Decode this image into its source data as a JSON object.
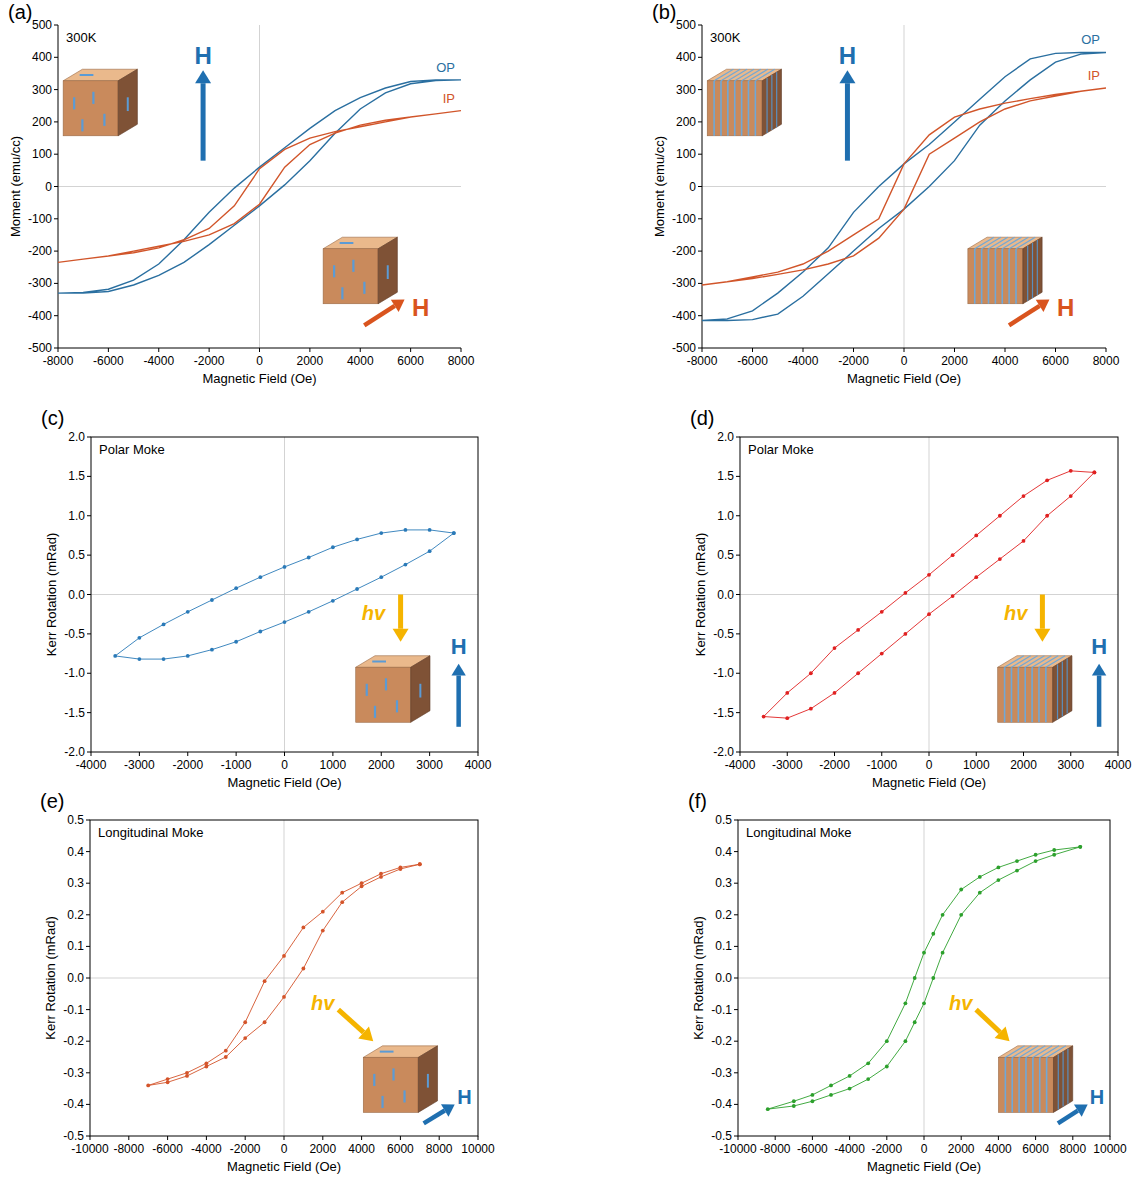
{
  "chart_data": [
    {
      "type": "line",
      "title": "(a)",
      "x_label": "Magnetic Field (Oe)",
      "y_label": "Moment (emu/cc)",
      "xlim": [
        -8000,
        8000
      ],
      "ylim": [
        -500,
        500
      ],
      "xticks": [
        -8000,
        -6000,
        -4000,
        -2000,
        0,
        2000,
        4000,
        6000,
        8000
      ],
      "yticks": [
        -500,
        -400,
        -300,
        -200,
        -100,
        0,
        100,
        200,
        300,
        400,
        500
      ],
      "annotations": [
        {
          "text": "300K"
        },
        {
          "text": "H",
          "color": "#1f6fb0"
        },
        {
          "text": "H",
          "color": "#d9541e"
        }
      ],
      "series": [
        {
          "name": "OP",
          "color": "#2a6fa0",
          "x": [
            8000,
            7000,
            6000,
            5000,
            4000,
            3000,
            2000,
            1000,
            0,
            -1000,
            -2000,
            -3000,
            -4000,
            -5000,
            -6000,
            -7000,
            -8000,
            -7000,
            -6000,
            -5000,
            -4000,
            -3000,
            -2000,
            -1000,
            0,
            1000,
            2000,
            3000,
            4000,
            5000,
            6000,
            7000,
            8000
          ],
          "values": [
            330,
            330,
            325,
            305,
            275,
            235,
            180,
            120,
            60,
            -5,
            -80,
            -165,
            -240,
            -290,
            -318,
            -328,
            -330,
            -330,
            -325,
            -305,
            -275,
            -235,
            -180,
            -120,
            -60,
            5,
            80,
            165,
            240,
            290,
            318,
            328,
            330
          ]
        },
        {
          "name": "IP",
          "color": "#d1552a",
          "x": [
            8000,
            7000,
            6000,
            5000,
            4000,
            3000,
            2000,
            1000,
            0,
            -1000,
            -2000,
            -3000,
            -4000,
            -5000,
            -6000,
            -7000,
            -8000,
            -7000,
            -6000,
            -5000,
            -4000,
            -3000,
            -2000,
            -1000,
            0,
            1000,
            2000,
            3000,
            4000,
            5000,
            6000,
            7000,
            8000
          ],
          "values": [
            235,
            225,
            215,
            200,
            185,
            170,
            150,
            115,
            55,
            -60,
            -130,
            -165,
            -190,
            -205,
            -215,
            -225,
            -235,
            -225,
            -215,
            -200,
            -185,
            -170,
            -150,
            -115,
            -55,
            60,
            130,
            165,
            190,
            205,
            215,
            225,
            235
          ]
        }
      ]
    },
    {
      "type": "line",
      "title": "(b)",
      "x_label": "Magnetic Field (Oe)",
      "y_label": "Moment (emu/cc)",
      "xlim": [
        -8000,
        8000
      ],
      "ylim": [
        -500,
        500
      ],
      "xticks": [
        -8000,
        -6000,
        -4000,
        -2000,
        0,
        2000,
        4000,
        6000,
        8000
      ],
      "yticks": [
        -500,
        -400,
        -300,
        -200,
        -100,
        0,
        100,
        200,
        300,
        400,
        500
      ],
      "annotations": [
        {
          "text": "300K"
        },
        {
          "text": "H",
          "color": "#1f6fb0"
        },
        {
          "text": "H",
          "color": "#d9541e"
        }
      ],
      "series": [
        {
          "name": "OP",
          "color": "#2a6fa0",
          "x": [
            8000,
            7000,
            6000,
            5000,
            4000,
            3000,
            2000,
            1000,
            0,
            -1000,
            -2000,
            -3000,
            -4000,
            -5000,
            -6000,
            -7000,
            -8000,
            -7000,
            -6000,
            -5000,
            -4000,
            -3000,
            -2000,
            -1000,
            0,
            1000,
            2000,
            3000,
            4000,
            5000,
            6000,
            7000,
            8000
          ],
          "values": [
            415,
            415,
            412,
            395,
            340,
            270,
            200,
            130,
            70,
            0,
            -80,
            -190,
            -265,
            -330,
            -385,
            -410,
            -415,
            -415,
            -412,
            -395,
            -340,
            -270,
            -200,
            -130,
            -70,
            0,
            80,
            190,
            265,
            330,
            385,
            410,
            415
          ]
        },
        {
          "name": "IP",
          "color": "#d1552a",
          "x": [
            8000,
            7000,
            6000,
            5000,
            4000,
            3000,
            2000,
            1000,
            0,
            -1000,
            -2000,
            -3000,
            -4000,
            -5000,
            -6000,
            -7000,
            -8000,
            -7000,
            -6000,
            -5000,
            -4000,
            -3000,
            -2000,
            -1000,
            0,
            1000,
            2000,
            3000,
            4000,
            5000,
            6000,
            7000,
            8000
          ],
          "values": [
            305,
            295,
            285,
            272,
            258,
            240,
            215,
            160,
            70,
            -100,
            -150,
            -200,
            -240,
            -265,
            -280,
            -295,
            -305,
            -295,
            -285,
            -272,
            -258,
            -240,
            -215,
            -160,
            -70,
            100,
            150,
            200,
            240,
            265,
            280,
            295,
            305
          ]
        }
      ]
    },
    {
      "type": "line",
      "title": "(c)",
      "x_label": "Magnetic Field (Oe)",
      "y_label": "Kerr Rotation (mRad)",
      "xlim": [
        -4000,
        4000
      ],
      "ylim": [
        -2,
        2
      ],
      "xticks": [
        -4000,
        -3000,
        -2000,
        -1000,
        0,
        1000,
        2000,
        3000,
        4000
      ],
      "yticks": [
        {
          "value": -2,
          "label": "-2.0"
        },
        -1.5,
        {
          "value": -1,
          "label": "-1.0"
        },
        -0.5,
        {
          "value": 0,
          "label": "0.0"
        },
        0.5,
        {
          "value": 1,
          "label": "1.0"
        },
        1.5,
        {
          "value": 2,
          "label": "2.0"
        }
      ],
      "annotations": [
        {
          "text": "Polar Moke"
        },
        {
          "text": "hv",
          "color": "#f5b400"
        },
        {
          "text": "H",
          "color": "#1f6fb0"
        }
      ],
      "series": [
        {
          "color": "#2a7ab8",
          "marker": "circle",
          "line_style": "solid",
          "x": [
            3500,
            3000,
            2500,
            2000,
            1500,
            1000,
            500,
            0,
            -500,
            -1000,
            -1500,
            -2000,
            -2500,
            -3000,
            -3500,
            -3000,
            -2500,
            -2000,
            -1500,
            -1000,
            -500,
            0,
            500,
            1000,
            1500,
            2000,
            2500,
            3000,
            3500
          ],
          "values": [
            0.78,
            0.82,
            0.82,
            0.78,
            0.7,
            0.6,
            0.47,
            0.35,
            0.22,
            0.08,
            -0.07,
            -0.22,
            -0.38,
            -0.55,
            -0.78,
            -0.82,
            -0.82,
            -0.78,
            -0.7,
            -0.6,
            -0.47,
            -0.35,
            -0.22,
            -0.08,
            0.07,
            0.22,
            0.38,
            0.55,
            0.78
          ]
        }
      ]
    },
    {
      "type": "line",
      "title": "(d)",
      "x_label": "Magnetic Field (Oe)",
      "y_label": "Kerr Rotation (mRad)",
      "xlim": [
        -4000,
        4000
      ],
      "ylim": [
        -2,
        2
      ],
      "xticks": [
        -4000,
        -3000,
        -2000,
        -1000,
        0,
        1000,
        2000,
        3000,
        4000
      ],
      "yticks": [
        {
          "value": -2,
          "label": "-2.0"
        },
        -1.5,
        {
          "value": -1,
          "label": "-1.0"
        },
        -0.5,
        {
          "value": 0,
          "label": "0.0"
        },
        0.5,
        {
          "value": 1,
          "label": "1.0"
        },
        1.5,
        {
          "value": 2,
          "label": "2.0"
        }
      ],
      "annotations": [
        {
          "text": "Polar Moke"
        },
        {
          "text": "hv",
          "color": "#f5b400"
        },
        {
          "text": "H",
          "color": "#1f6fb0"
        }
      ],
      "series": [
        {
          "color": "#e02020",
          "marker": "circle",
          "line_style": "solid",
          "x": [
            3500,
            3000,
            2500,
            2000,
            1500,
            1000,
            500,
            0,
            -500,
            -1000,
            -1500,
            -2000,
            -2500,
            -3000,
            -3500,
            -3000,
            -2500,
            -2000,
            -1500,
            -1000,
            -500,
            0,
            500,
            1000,
            1500,
            2000,
            2500,
            3000,
            3500
          ],
          "values": [
            1.55,
            1.57,
            1.45,
            1.25,
            1.0,
            0.75,
            0.5,
            0.25,
            0.02,
            -0.22,
            -0.45,
            -0.68,
            -1.0,
            -1.25,
            -1.55,
            -1.57,
            -1.45,
            -1.25,
            -1.0,
            -0.75,
            -0.5,
            -0.25,
            -0.02,
            0.22,
            0.45,
            0.68,
            1.0,
            1.25,
            1.55
          ]
        }
      ]
    },
    {
      "type": "line",
      "title": "(e)",
      "x_label": "Magnetic Field (Oe)",
      "y_label": "Kerr Rotation (mRad)",
      "xlim": [
        -10000,
        10000
      ],
      "ylim": [
        -0.5,
        0.5
      ],
      "xticks": [
        -10000,
        -8000,
        -6000,
        -4000,
        -2000,
        0,
        2000,
        4000,
        6000,
        8000,
        10000
      ],
      "yticks": [
        -0.5,
        -0.4,
        -0.3,
        -0.2,
        -0.1,
        {
          "value": 0,
          "label": "0.0"
        },
        0.1,
        0.2,
        0.3,
        0.4,
        0.5
      ],
      "annotations": [
        {
          "text": "Longitudinal Moke"
        },
        {
          "text": "hv",
          "color": "#f5b400"
        },
        {
          "text": "H",
          "color": "#1f6fb0"
        }
      ],
      "series": [
        {
          "color": "#d4542a",
          "marker": "circle",
          "line_style": "solid",
          "x": [
            7000,
            6000,
            5000,
            4000,
            3000,
            2000,
            1000,
            0,
            -1000,
            -2000,
            -3000,
            -4000,
            -5000,
            -6000,
            -7000,
            -6000,
            -5000,
            -4000,
            -3000,
            -2000,
            -1000,
            0,
            1000,
            2000,
            3000,
            4000,
            5000,
            6000,
            7000
          ],
          "values": [
            0.36,
            0.35,
            0.33,
            0.3,
            0.27,
            0.21,
            0.16,
            0.07,
            -0.01,
            -0.14,
            -0.23,
            -0.27,
            -0.3,
            -0.32,
            -0.34,
            -0.33,
            -0.31,
            -0.28,
            -0.25,
            -0.19,
            -0.14,
            -0.06,
            0.03,
            0.15,
            0.24,
            0.29,
            0.32,
            0.345,
            0.36
          ]
        }
      ]
    },
    {
      "type": "line",
      "title": "(f)",
      "x_label": "Magnetic Field (Oe)",
      "y_label": "Kerr Rotation (mRad)",
      "xlim": [
        -10000,
        10000
      ],
      "ylim": [
        -0.5,
        0.5
      ],
      "xticks": [
        -10000,
        -8000,
        -6000,
        -4000,
        -2000,
        0,
        2000,
        4000,
        6000,
        8000,
        10000
      ],
      "yticks": [
        -0.5,
        -0.4,
        -0.3,
        -0.2,
        -0.1,
        {
          "value": 0,
          "label": "0.0"
        },
        0.1,
        0.2,
        0.3,
        0.4,
        0.5
      ],
      "annotations": [
        {
          "text": "Longitudinal Moke"
        },
        {
          "text": "hv",
          "color": "#f5b400"
        },
        {
          "text": "H",
          "color": "#1f6fb0"
        }
      ],
      "series": [
        {
          "color": "#2ca02c",
          "marker": "circle",
          "line_style": "solid",
          "x": [
            8400,
            7000,
            6000,
            5000,
            4000,
            3000,
            2000,
            1000,
            500,
            0,
            -500,
            -1000,
            -2000,
            -3000,
            -4000,
            -5000,
            -6000,
            -7000,
            -8400,
            -7000,
            -6000,
            -5000,
            -4000,
            -3000,
            -2000,
            -1000,
            -500,
            0,
            500,
            1000,
            2000,
            3000,
            4000,
            5000,
            6000,
            7000,
            8400
          ],
          "values": [
            0.415,
            0.405,
            0.39,
            0.37,
            0.35,
            0.32,
            0.28,
            0.2,
            0.14,
            0.08,
            0.0,
            -0.08,
            -0.2,
            -0.27,
            -0.31,
            -0.34,
            -0.37,
            -0.39,
            -0.415,
            -0.405,
            -0.39,
            -0.37,
            -0.35,
            -0.32,
            -0.28,
            -0.2,
            -0.14,
            -0.08,
            0.0,
            0.08,
            0.2,
            0.27,
            0.31,
            0.34,
            0.37,
            0.39,
            0.415
          ]
        }
      ]
    }
  ]
}
